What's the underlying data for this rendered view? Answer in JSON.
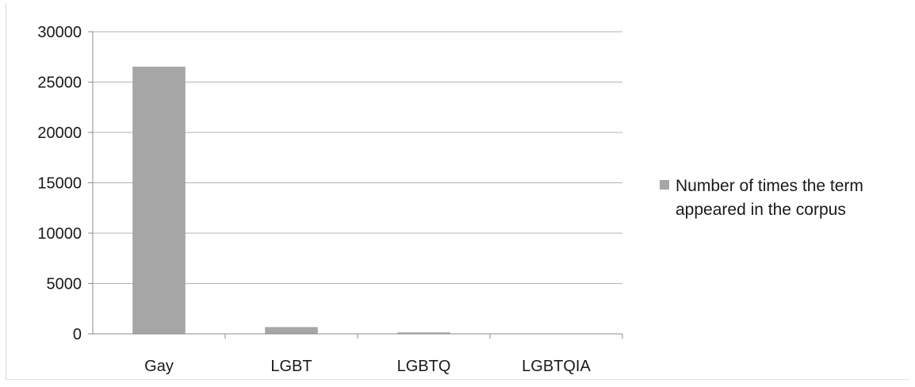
{
  "chart_data": {
    "type": "bar",
    "categories": [
      "Gay",
      "LGBT",
      "LGBTQ",
      "LGBTQIA"
    ],
    "series": [
      {
        "name": "Number of times the term appeared in the corpus",
        "values": [
          26500,
          650,
          120,
          20
        ],
        "color": "#a6a6a6"
      }
    ],
    "yticks": [
      0,
      5000,
      10000,
      15000,
      20000,
      25000,
      30000
    ],
    "ylim": [
      0,
      30000
    ],
    "grid": true,
    "legend_position": "right",
    "legend_label_lines": [
      "Number of times the term",
      "appeared in the corpus"
    ],
    "colors": {
      "bar": "#a6a6a6",
      "grid": "#b3b3b3",
      "axis": "#8c8c8c",
      "text": "#1a1a1a"
    }
  }
}
